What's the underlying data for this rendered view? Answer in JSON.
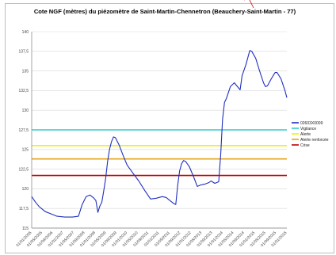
{
  "chart_data": {
    "type": "line",
    "title": "Cote NGF (mètres) du piézomètre de Saint-Martin-Chennetron (Beauchery-Saint-Martin - 77)",
    "xlabel": "",
    "ylabel": "",
    "ylim": [
      115,
      140
    ],
    "yticks": [
      115,
      117.5,
      120,
      122.5,
      125,
      127.5,
      130,
      132.5,
      135,
      137.5,
      140
    ],
    "ytick_labels": [
      "115",
      "117,5",
      "120",
      "122,5",
      "125",
      "127,5",
      "130",
      "132,5",
      "135",
      "137,5",
      "140"
    ],
    "xlim": [
      "2005-01-01",
      "2015-12-01"
    ],
    "xtick_labels": [
      "01/01/2005",
      "01/05/2005",
      "01/09/2006",
      "01/01/2007",
      "01/05/2007",
      "01/09/2008",
      "01/01/2008",
      "01/05/2009",
      "01/09/2009",
      "01/01/2010",
      "01/05/2010",
      "01/09/2011",
      "01/01/2011",
      "01/05/2011",
      "01/09/2012",
      "01/01/2012",
      "01/05/2013",
      "01/09/2013",
      "01/01/2014",
      "01/05/2014",
      "01/09/2014",
      "01/01/2015",
      "01/05/2015",
      "01/09/2015",
      "01/01/2015"
    ],
    "grid": "horizontal",
    "legend_position": "right",
    "series": [
      {
        "name": "02603X0009",
        "color": "#1f2fbf",
        "points": [
          [
            "2005-01-01",
            119.0
          ],
          [
            "2005-03-01",
            118.3
          ],
          [
            "2005-05-01",
            117.7
          ],
          [
            "2005-08-01",
            117.1
          ],
          [
            "2005-11-01",
            116.8
          ],
          [
            "2006-02-01",
            116.5
          ],
          [
            "2006-06-01",
            116.4
          ],
          [
            "2006-10-01",
            116.4
          ],
          [
            "2007-01-01",
            116.5
          ],
          [
            "2007-03-01",
            118.0
          ],
          [
            "2007-05-01",
            119.0
          ],
          [
            "2007-07-01",
            119.2
          ],
          [
            "2007-09-01",
            118.8
          ],
          [
            "2007-10-01",
            118.5
          ],
          [
            "2007-11-01",
            117.0
          ],
          [
            "2007-12-01",
            117.8
          ],
          [
            "2008-01-01",
            118.3
          ],
          [
            "2008-02-01",
            119.8
          ],
          [
            "2008-03-01",
            121.3
          ],
          [
            "2008-04-01",
            123.5
          ],
          [
            "2008-05-01",
            125.0
          ],
          [
            "2008-06-01",
            126.0
          ],
          [
            "2008-07-01",
            126.6
          ],
          [
            "2008-08-01",
            126.5
          ],
          [
            "2008-10-01",
            125.5
          ],
          [
            "2008-12-01",
            124.2
          ],
          [
            "2009-02-01",
            123.0
          ],
          [
            "2009-05-01",
            122.0
          ],
          [
            "2009-08-01",
            121.0
          ],
          [
            "2009-11-01",
            119.8
          ],
          [
            "2010-02-01",
            118.7
          ],
          [
            "2010-05-01",
            118.8
          ],
          [
            "2010-08-01",
            119.0
          ],
          [
            "2010-10-01",
            118.9
          ],
          [
            "2010-12-01",
            118.5
          ],
          [
            "2011-02-01",
            118.1
          ],
          [
            "2011-03-01",
            118.0
          ],
          [
            "2011-04-01",
            120.5
          ],
          [
            "2011-05-01",
            122.3
          ],
          [
            "2011-06-01",
            123.2
          ],
          [
            "2011-07-01",
            123.6
          ],
          [
            "2011-08-01",
            123.5
          ],
          [
            "2011-10-01",
            122.8
          ],
          [
            "2011-12-01",
            121.6
          ],
          [
            "2012-02-01",
            120.3
          ],
          [
            "2012-04-01",
            120.5
          ],
          [
            "2012-06-01",
            120.6
          ],
          [
            "2012-08-01",
            120.8
          ],
          [
            "2012-09-01",
            121.0
          ],
          [
            "2012-11-01",
            120.7
          ],
          [
            "2013-01-01",
            120.9
          ],
          [
            "2013-02-01",
            124.5
          ],
          [
            "2013-03-01",
            128.8
          ],
          [
            "2013-04-01",
            131.0
          ],
          [
            "2013-05-01",
            131.5
          ],
          [
            "2013-07-01",
            133.0
          ],
          [
            "2013-09-01",
            133.5
          ],
          [
            "2013-10-01",
            133.2
          ],
          [
            "2013-12-01",
            132.6
          ],
          [
            "2014-01-01",
            134.4
          ],
          [
            "2014-03-01",
            135.8
          ],
          [
            "2014-05-01",
            137.6
          ],
          [
            "2014-06-01",
            137.5
          ],
          [
            "2014-08-01",
            136.6
          ],
          [
            "2014-10-01",
            135.0
          ],
          [
            "2014-12-01",
            133.5
          ],
          [
            "2015-01-01",
            133.0
          ],
          [
            "2015-02-01",
            133.1
          ],
          [
            "2015-04-01",
            134.0
          ],
          [
            "2015-06-01",
            134.8
          ],
          [
            "2015-07-01",
            134.8
          ],
          [
            "2015-09-01",
            134.0
          ],
          [
            "2015-11-01",
            132.5
          ],
          [
            "2015-12-01",
            131.6
          ]
        ]
      },
      {
        "name": "Vigilance",
        "color": "#33cccc",
        "value": 127.5
      },
      {
        "name": "Alerte",
        "color": "#f2f200",
        "value": 125.5
      },
      {
        "name": "Alerte renforcée",
        "color": "#e8a317",
        "value": 123.8
      },
      {
        "name": "Crise",
        "color": "#c00000",
        "value": 121.7
      }
    ]
  }
}
